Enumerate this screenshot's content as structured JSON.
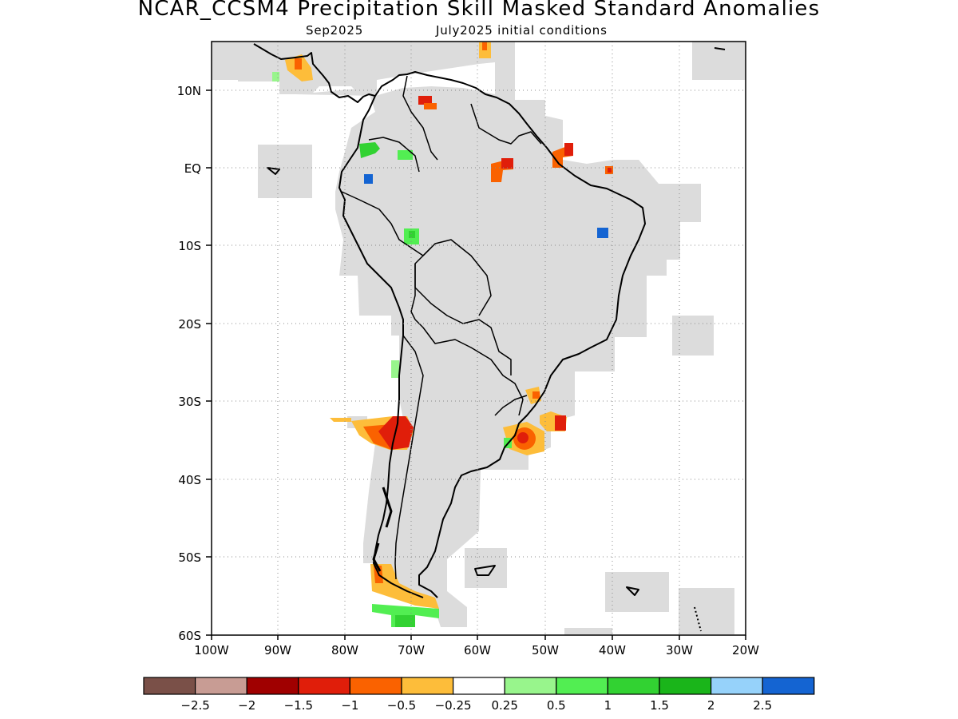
{
  "title": "NCAR_CCSM4 Precipitation Skill Masked Standard Anomalies",
  "subtitle_left": "Sep2025",
  "subtitle_right": "July2025 initial conditions",
  "map": {
    "lat_labels": [
      "10N",
      "EQ",
      "10S",
      "20S",
      "30S",
      "40S",
      "50S",
      "60S"
    ],
    "lon_labels": [
      "100W",
      "90W",
      "80W",
      "70W",
      "60W",
      "50W",
      "40W",
      "30W",
      "20W"
    ],
    "grid": "dotted",
    "mask_color": "#dcdcdc"
  },
  "colorbar": {
    "colors": [
      "#7a5048",
      "#c89c94",
      "#a00000",
      "#e01e0a",
      "#fa6200",
      "#fdbd3a",
      "#ffffff",
      "#98f58c",
      "#52ee52",
      "#32d232",
      "#1ab51a",
      "#96d2fa",
      "#1464d2"
    ],
    "labels": [
      "−2.5",
      "−2",
      "−1.5",
      "−1",
      "−0.5",
      "−0.25",
      "0.25",
      "0.5",
      "1",
      "1.5",
      "2",
      "2.5"
    ]
  }
}
